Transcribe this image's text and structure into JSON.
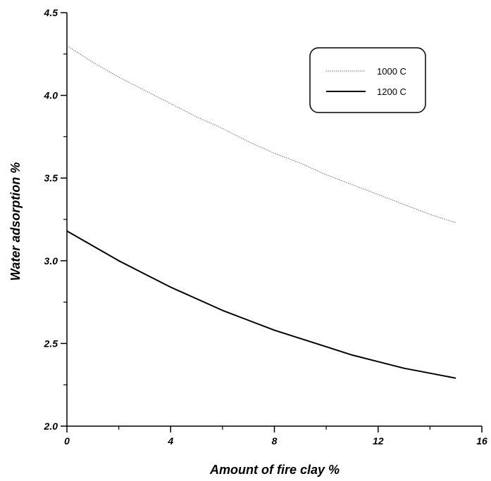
{
  "chart_data": {
    "type": "line",
    "title": "",
    "xlabel": "Amount of fire clay %",
    "ylabel": "Water adsorption %",
    "xlim": [
      0,
      16
    ],
    "ylim": [
      2.0,
      4.5
    ],
    "x_major_ticks": [
      0,
      4,
      8,
      12,
      16
    ],
    "x_tick_labels": [
      "0",
      "4",
      "8",
      "12",
      "16"
    ],
    "x_minor_ticks": [
      2,
      6,
      10,
      14
    ],
    "y_major_ticks": [
      2.0,
      2.5,
      3.0,
      3.5,
      4.0,
      4.5
    ],
    "y_tick_labels": [
      "2.0",
      "2.5",
      "3.0",
      "3.5",
      "4.0",
      "4.5"
    ],
    "y_minor_ticks": [
      2.25,
      2.75,
      3.25,
      3.75,
      4.25
    ],
    "grid": false,
    "legend_position": "top-right",
    "series": [
      {
        "name": "1000 C",
        "style": "dotted",
        "color": "#555555",
        "x": [
          0,
          1,
          2,
          3,
          4,
          5,
          6,
          7,
          8,
          9,
          10,
          11,
          12,
          13,
          14,
          15
        ],
        "y": [
          4.3,
          4.2,
          4.11,
          4.03,
          3.95,
          3.87,
          3.8,
          3.72,
          3.65,
          3.59,
          3.52,
          3.46,
          3.4,
          3.34,
          3.28,
          3.23
        ]
      },
      {
        "name": "1200 C",
        "style": "solid",
        "color": "#000000",
        "x": [
          0,
          1,
          2,
          3,
          4,
          5,
          6,
          7,
          8,
          9,
          10,
          11,
          12,
          13,
          14,
          15
        ],
        "y": [
          3.18,
          3.09,
          3.0,
          2.92,
          2.84,
          2.77,
          2.7,
          2.64,
          2.58,
          2.53,
          2.48,
          2.43,
          2.39,
          2.35,
          2.32,
          2.29
        ]
      }
    ]
  }
}
